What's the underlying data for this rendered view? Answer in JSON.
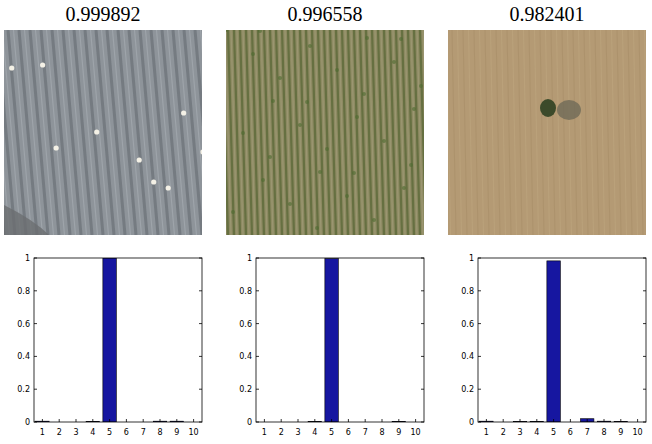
{
  "chart_data": [
    {
      "type": "bar",
      "title": "0.999892",
      "categories": [
        "1",
        "2",
        "3",
        "4",
        "5",
        "6",
        "7",
        "8",
        "9",
        "10"
      ],
      "values": [
        0.005,
        0,
        0,
        0.004,
        0.999892,
        0,
        0,
        0.005,
        0.005,
        0
      ],
      "color": "#1616a0",
      "ylim": [
        0,
        1
      ],
      "yticks": [
        0,
        0.2,
        0.4,
        0.6,
        0.8,
        1
      ]
    },
    {
      "type": "bar",
      "title": "0.996558",
      "categories": [
        "1",
        "2",
        "3",
        "4",
        "5",
        "6",
        "7",
        "8",
        "9",
        "10"
      ],
      "values": [
        0,
        0,
        0,
        0.004,
        0.996558,
        0,
        0,
        0,
        0.004,
        0
      ],
      "color": "#1616a0",
      "ylim": [
        0,
        1
      ],
      "yticks": [
        0,
        0.2,
        0.4,
        0.6,
        0.8,
        1
      ]
    },
    {
      "type": "bar",
      "title": "0.982401",
      "categories": [
        "1",
        "2",
        "3",
        "4",
        "5",
        "6",
        "7",
        "8",
        "9",
        "10"
      ],
      "values": [
        0.005,
        0,
        0.003,
        0.004,
        0.982401,
        0,
        0.02,
        0.005,
        0.004,
        0
      ],
      "color": "#1616a0",
      "ylim": [
        0,
        1
      ],
      "yticks": [
        0,
        0.2,
        0.4,
        0.6,
        0.8,
        1
      ]
    }
  ]
}
